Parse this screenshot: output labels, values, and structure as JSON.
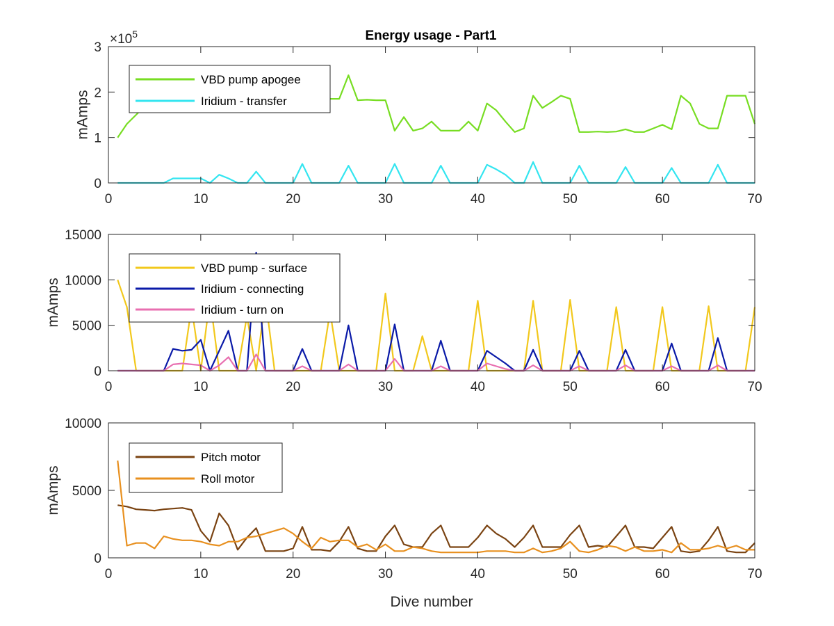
{
  "chart_data": [
    {
      "type": "line",
      "title": "Energy usage - Part1",
      "xlabel": "",
      "ylabel": "mAmps",
      "y_exponent_label": "×10",
      "y_exponent_power": "5",
      "xlim": [
        0,
        70
      ],
      "ylim": [
        0,
        300000
      ],
      "xticks": [
        0,
        10,
        20,
        30,
        40,
        50,
        60,
        70
      ],
      "yticks": [
        0,
        100000,
        200000,
        300000
      ],
      "ytick_labels": [
        "0",
        "1",
        "2",
        "3"
      ],
      "grid": false,
      "legend_position": "top-left",
      "x": [
        1,
        2,
        3,
        4,
        5,
        6,
        7,
        8,
        9,
        10,
        11,
        12,
        13,
        14,
        15,
        16,
        17,
        18,
        19,
        20,
        21,
        22,
        23,
        24,
        25,
        26,
        27,
        28,
        29,
        30,
        31,
        32,
        33,
        34,
        35,
        36,
        37,
        38,
        39,
        40,
        41,
        42,
        43,
        44,
        45,
        46,
        47,
        48,
        49,
        50,
        51,
        52,
        53,
        54,
        55,
        56,
        57,
        58,
        59,
        60,
        61,
        62,
        63,
        64,
        65,
        66,
        67,
        68,
        69,
        70
      ],
      "series": [
        {
          "name": "VBD pump apogee",
          "color": "#77dd22",
          "values": [
            100000,
            130000,
            150000,
            170000,
            180000,
            180000,
            185000,
            185000,
            185000,
            185000,
            185000,
            185000,
            185000,
            185000,
            185000,
            185000,
            185000,
            185000,
            185000,
            185000,
            185000,
            185000,
            185000,
            185000,
            185000,
            237000,
            182000,
            183000,
            182000,
            182000,
            115000,
            145000,
            115000,
            120000,
            135000,
            115000,
            115000,
            115000,
            135000,
            115000,
            175000,
            160000,
            135000,
            112000,
            120000,
            192000,
            165000,
            178000,
            192000,
            185000,
            112000,
            112000,
            113000,
            112000,
            113000,
            118000,
            112000,
            112000,
            120000,
            128000,
            118000,
            192000,
            175000,
            130000,
            120000,
            120000,
            192000,
            192000,
            192000,
            130000
          ]
        },
        {
          "name": "Iridium - transfer",
          "color": "#33e5f0",
          "values": [
            0,
            0,
            0,
            0,
            0,
            0,
            10000,
            10000,
            10000,
            10000,
            0,
            18000,
            10000,
            0,
            0,
            25000,
            0,
            0,
            0,
            0,
            42000,
            0,
            0,
            0,
            0,
            38000,
            0,
            0,
            0,
            0,
            42000,
            0,
            0,
            0,
            0,
            38000,
            0,
            0,
            0,
            0,
            40000,
            30000,
            18000,
            0,
            0,
            46000,
            0,
            0,
            0,
            0,
            38000,
            0,
            0,
            0,
            0,
            35000,
            0,
            0,
            0,
            0,
            33000,
            0,
            0,
            0,
            0,
            40000,
            0,
            0,
            0,
            0
          ]
        }
      ]
    },
    {
      "type": "line",
      "title": "",
      "xlabel": "",
      "ylabel": "mAmps",
      "xlim": [
        0,
        70
      ],
      "ylim": [
        0,
        15000
      ],
      "xticks": [
        0,
        10,
        20,
        30,
        40,
        50,
        60,
        70
      ],
      "yticks": [
        0,
        5000,
        10000,
        15000
      ],
      "ytick_labels": [
        "0",
        "5000",
        "10000",
        "15000"
      ],
      "grid": false,
      "legend_position": "top-left",
      "x": [
        1,
        2,
        3,
        4,
        5,
        6,
        7,
        8,
        9,
        10,
        11,
        12,
        13,
        14,
        15,
        16,
        17,
        18,
        19,
        20,
        21,
        22,
        23,
        24,
        25,
        26,
        27,
        28,
        29,
        30,
        31,
        32,
        33,
        34,
        35,
        36,
        37,
        38,
        39,
        40,
        41,
        42,
        43,
        44,
        45,
        46,
        47,
        48,
        49,
        50,
        51,
        52,
        53,
        54,
        55,
        56,
        57,
        58,
        59,
        60,
        61,
        62,
        63,
        64,
        65,
        66,
        67,
        68,
        69,
        70
      ],
      "series": [
        {
          "name": "VBD pump - surface",
          "color": "#f2c81c",
          "values": [
            10000,
            7000,
            0,
            0,
            0,
            0,
            0,
            0,
            7000,
            0,
            8000,
            0,
            0,
            0,
            6000,
            0,
            8000,
            0,
            0,
            0,
            0,
            0,
            0,
            6500,
            0,
            0,
            0,
            0,
            0,
            8500,
            0,
            0,
            0,
            3800,
            0,
            0,
            0,
            0,
            0,
            7700,
            0,
            0,
            0,
            0,
            0,
            7700,
            0,
            0,
            0,
            7800,
            0,
            0,
            0,
            0,
            7000,
            0,
            0,
            0,
            0,
            7000,
            0,
            0,
            0,
            0,
            7100,
            0,
            0,
            0,
            0,
            7000
          ]
        },
        {
          "name": "Iridium - connecting",
          "color": "#0a1aa8",
          "values": [
            0,
            0,
            0,
            0,
            0,
            0,
            2400,
            2200,
            2300,
            3400,
            0,
            2200,
            4400,
            0,
            0,
            13000,
            0,
            0,
            0,
            0,
            2400,
            0,
            0,
            0,
            0,
            5000,
            0,
            0,
            0,
            0,
            5100,
            0,
            0,
            0,
            0,
            3300,
            0,
            0,
            0,
            0,
            2200,
            1500,
            800,
            0,
            0,
            2300,
            0,
            0,
            0,
            0,
            2200,
            0,
            0,
            0,
            0,
            2300,
            0,
            0,
            0,
            0,
            3000,
            0,
            0,
            0,
            0,
            3600,
            0,
            0,
            0,
            0
          ]
        },
        {
          "name": "Iridium - turn on",
          "color": "#e86fb0",
          "values": [
            0,
            0,
            0,
            0,
            0,
            0,
            700,
            800,
            700,
            600,
            0,
            600,
            1500,
            0,
            0,
            1800,
            0,
            0,
            0,
            0,
            500,
            0,
            0,
            0,
            0,
            700,
            0,
            0,
            0,
            0,
            1300,
            0,
            0,
            0,
            0,
            500,
            0,
            0,
            0,
            0,
            800,
            500,
            200,
            0,
            0,
            600,
            0,
            0,
            0,
            0,
            500,
            0,
            0,
            0,
            0,
            600,
            0,
            0,
            0,
            0,
            500,
            0,
            0,
            0,
            0,
            600,
            0,
            0,
            0,
            0
          ]
        }
      ]
    },
    {
      "type": "line",
      "title": "",
      "xlabel": "Dive number",
      "ylabel": "mAmps",
      "xlim": [
        0,
        70
      ],
      "ylim": [
        0,
        10000
      ],
      "xticks": [
        0,
        10,
        20,
        30,
        40,
        50,
        60,
        70
      ],
      "yticks": [
        0,
        5000,
        10000
      ],
      "ytick_labels": [
        "0",
        "5000",
        "10000"
      ],
      "grid": false,
      "legend_position": "top-left",
      "x": [
        1,
        2,
        3,
        4,
        5,
        6,
        7,
        8,
        9,
        10,
        11,
        12,
        13,
        14,
        15,
        16,
        17,
        18,
        19,
        20,
        21,
        22,
        23,
        24,
        25,
        26,
        27,
        28,
        29,
        30,
        31,
        32,
        33,
        34,
        35,
        36,
        37,
        38,
        39,
        40,
        41,
        42,
        43,
        44,
        45,
        46,
        47,
        48,
        49,
        50,
        51,
        52,
        53,
        54,
        55,
        56,
        57,
        58,
        59,
        60,
        61,
        62,
        63,
        64,
        65,
        66,
        67,
        68,
        69,
        70
      ],
      "series": [
        {
          "name": "Pitch motor",
          "color": "#7a4312",
          "values": [
            3900,
            3800,
            3600,
            3550,
            3500,
            3600,
            3650,
            3700,
            3550,
            2000,
            1200,
            3300,
            2400,
            600,
            1500,
            2200,
            500,
            500,
            500,
            700,
            2300,
            600,
            600,
            500,
            1200,
            2300,
            700,
            500,
            500,
            1600,
            2400,
            1000,
            800,
            800,
            1800,
            2400,
            800,
            800,
            800,
            1500,
            2400,
            1800,
            1400,
            800,
            1500,
            2400,
            800,
            800,
            800,
            1700,
            2400,
            800,
            900,
            800,
            1600,
            2400,
            800,
            800,
            700,
            1500,
            2300,
            500,
            400,
            500,
            1300,
            2300,
            500,
            400,
            400,
            1100
          ]
        },
        {
          "name": "Roll motor",
          "color": "#e8901f",
          "values": [
            7200,
            900,
            1100,
            1100,
            700,
            1600,
            1400,
            1300,
            1300,
            1200,
            1000,
            900,
            1200,
            1200,
            1500,
            1600,
            1800,
            2000,
            2200,
            1800,
            1200,
            700,
            1500,
            1200,
            1300,
            1300,
            800,
            1000,
            600,
            1000,
            500,
            500,
            800,
            700,
            500,
            400,
            400,
            400,
            400,
            400,
            500,
            500,
            500,
            400,
            400,
            700,
            400,
            500,
            700,
            1200,
            500,
            400,
            600,
            900,
            800,
            500,
            800,
            500,
            500,
            600,
            400,
            1100,
            600,
            600,
            700,
            900,
            700,
            900,
            600,
            600
          ]
        }
      ]
    }
  ]
}
